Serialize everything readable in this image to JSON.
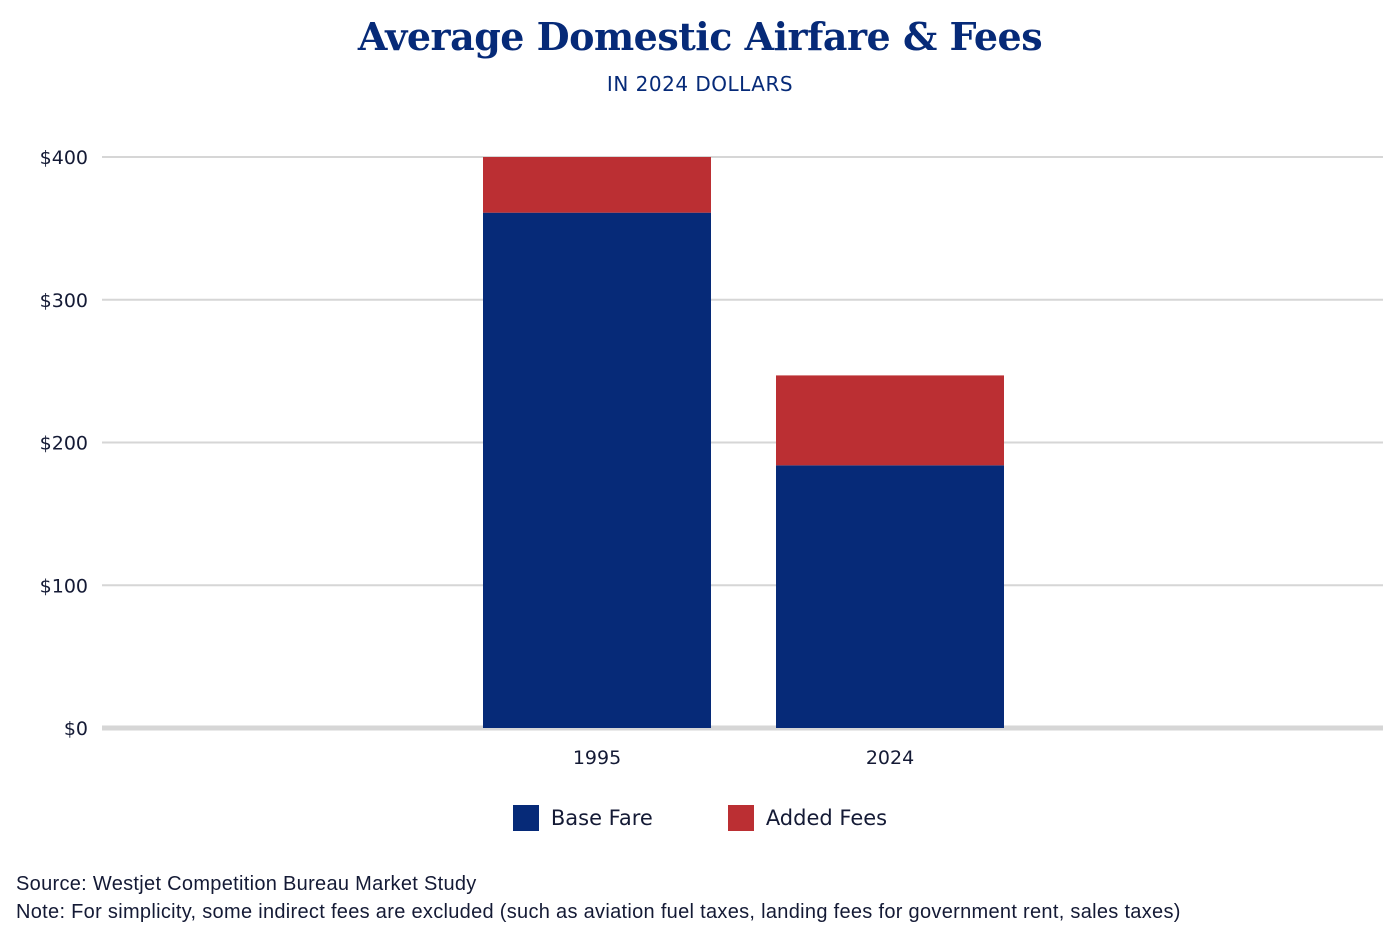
{
  "chart_data": {
    "type": "bar",
    "stacked": true,
    "title": "Average Domestic Airfare & Fees",
    "subtitle": "IN 2024 DOLLARS",
    "xlabel": "",
    "ylabel": "",
    "categories": [
      "1995",
      "2024"
    ],
    "series": [
      {
        "name": "Base Fare",
        "color": "#062a78",
        "values": [
          361,
          184
        ]
      },
      {
        "name": "Added Fees",
        "color": "#bb2f33",
        "values": [
          39,
          63
        ]
      }
    ],
    "ylim": [
      0,
      400
    ],
    "yticks": [
      0,
      100,
      200,
      300,
      400
    ],
    "ytick_labels": [
      "$0",
      "$100",
      "$200",
      "$300",
      "$400"
    ],
    "grid": true,
    "legend_position": "bottom-center"
  },
  "footer": {
    "source": "Source: Westjet Competition Bureau Market Study",
    "note": "Note: For simplicity, some indirect fees are excluded (such as aviation fuel taxes, landing fees for government rent, sales taxes)"
  }
}
